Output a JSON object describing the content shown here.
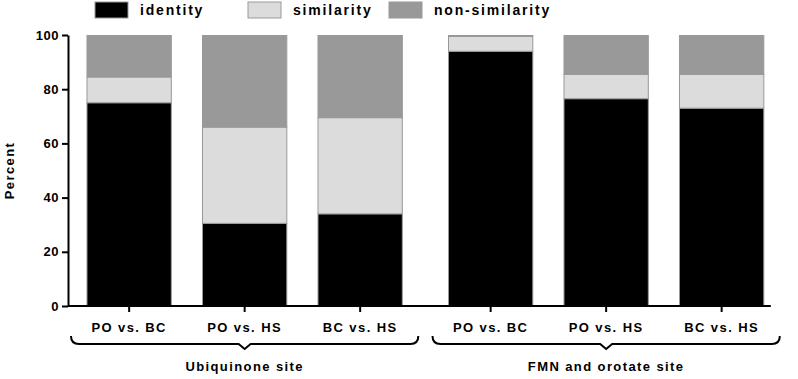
{
  "chart_data": {
    "type": "bar",
    "stacked": true,
    "legend": "top",
    "y_label": "Percent",
    "categories": [
      "PO vs. BC",
      "PO vs. HS",
      "BC vs. HS",
      "PO vs. BC",
      "PO vs. HS",
      "BC vs. HS"
    ],
    "groups": [
      {
        "label": "Ubiquinone site",
        "indices": [
          0,
          1,
          2
        ]
      },
      {
        "label": "FMN and orotate site",
        "indices": [
          3,
          4,
          5
        ]
      }
    ],
    "series": [
      {
        "name": "identity",
        "color": "#000000",
        "values": [
          75,
          30.5,
          34,
          94,
          76.5,
          73
        ]
      },
      {
        "name": "similarity",
        "color": "#dcdcdc",
        "values": [
          9.5,
          35.5,
          35.5,
          5.5,
          9,
          12.5
        ]
      },
      {
        "name": "non-similarity",
        "color": "#999999",
        "values": [
          15.5,
          34,
          30.5,
          0.5,
          14.5,
          14.5
        ]
      }
    ],
    "ylim": [
      0,
      100
    ],
    "yticks": [
      0,
      20,
      40,
      60,
      80,
      100
    ],
    "grid": false
  }
}
